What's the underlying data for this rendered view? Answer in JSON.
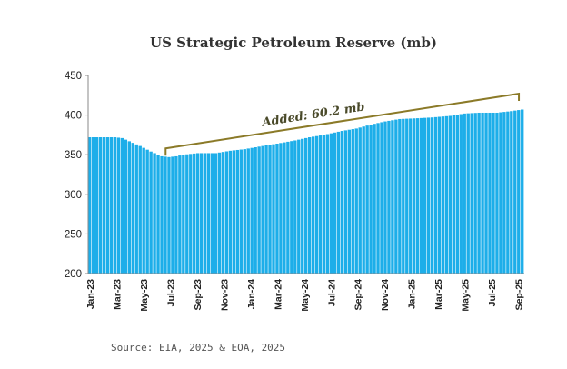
{
  "chart_data": {
    "type": "bar",
    "title": "US Strategic Petroleum Reserve (mb)",
    "xlabel": "",
    "ylabel": "",
    "ylim": [
      200,
      450
    ],
    "yticks": [
      200,
      250,
      300,
      350,
      400,
      450
    ],
    "grid": false,
    "x_tick_labels": [
      "Jan-23",
      "Mar-23",
      "May-23",
      "Jul-23",
      "Sep-23",
      "Nov-23",
      "Jan-24",
      "Mar-24",
      "May-24",
      "Jul-24",
      "Sep-24",
      "Nov-24",
      "Jan-25",
      "Mar-25",
      "May-25",
      "Jul-25",
      "Sep-25"
    ],
    "frequency": "weekly",
    "anchors": [
      {
        "week": 0,
        "value": 372
      },
      {
        "week": 7,
        "value": 372
      },
      {
        "week": 9,
        "value": 371
      },
      {
        "week": 11,
        "value": 367
      },
      {
        "week": 14,
        "value": 361
      },
      {
        "week": 17,
        "value": 354
      },
      {
        "week": 20,
        "value": 348
      },
      {
        "week": 22,
        "value": 347
      },
      {
        "week": 24,
        "value": 348
      },
      {
        "week": 26,
        "value": 350
      },
      {
        "week": 30,
        "value": 352
      },
      {
        "week": 35,
        "value": 352
      },
      {
        "week": 39,
        "value": 355
      },
      {
        "week": 43,
        "value": 357
      },
      {
        "week": 48,
        "value": 361
      },
      {
        "week": 52,
        "value": 364
      },
      {
        "week": 57,
        "value": 368
      },
      {
        "week": 61,
        "value": 372
      },
      {
        "week": 65,
        "value": 375
      },
      {
        "week": 70,
        "value": 380
      },
      {
        "week": 74,
        "value": 383
      },
      {
        "week": 78,
        "value": 388
      },
      {
        "week": 82,
        "value": 392
      },
      {
        "week": 86,
        "value": 395
      },
      {
        "week": 91,
        "value": 396
      },
      {
        "week": 95,
        "value": 397
      },
      {
        "week": 100,
        "value": 399
      },
      {
        "week": 104,
        "value": 402
      },
      {
        "week": 108,
        "value": 403
      },
      {
        "week": 113,
        "value": 403
      },
      {
        "week": 117,
        "value": 405
      },
      {
        "week": 120,
        "value": 407
      }
    ],
    "bar_color": "#1daee9",
    "annotation": {
      "text": "Added: 60.2 mb",
      "from": {
        "week": 21,
        "value": 358
      },
      "to": {
        "week": 119,
        "value": 427
      },
      "color": "#8b7a28"
    },
    "source": "Source: EIA, 2025 & EOA, 2025"
  }
}
